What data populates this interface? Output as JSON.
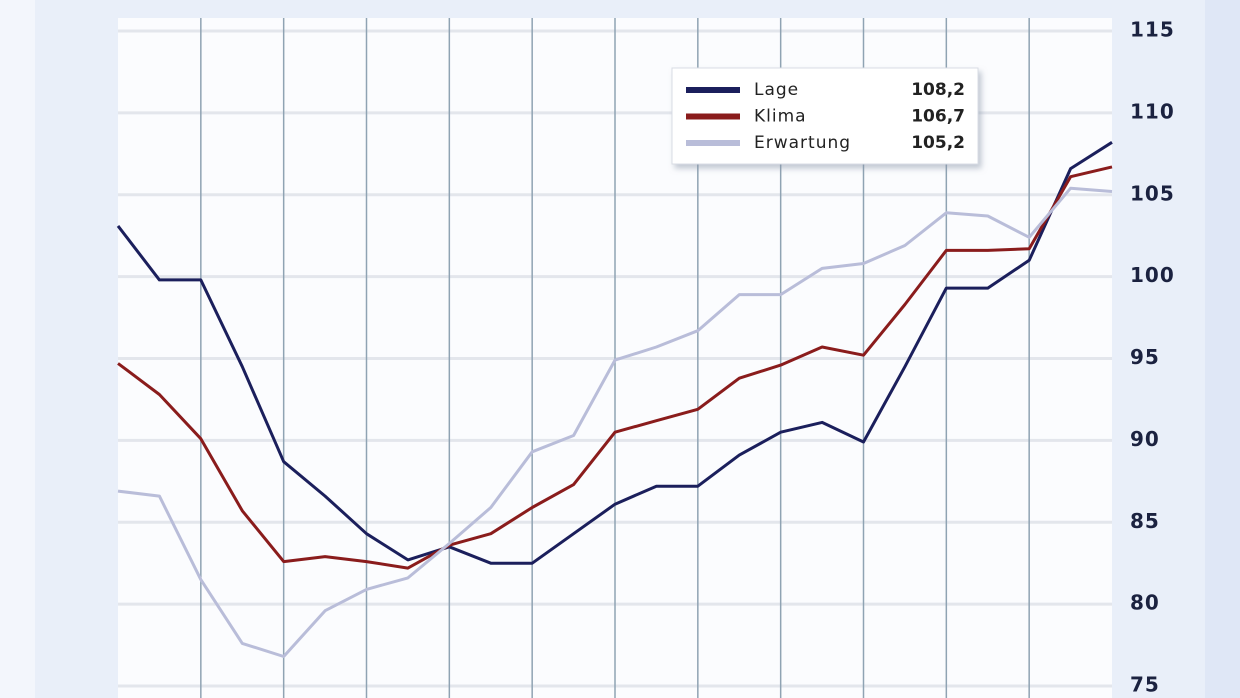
{
  "chart_data": {
    "type": "line",
    "ylim": [
      75,
      115
    ],
    "yticks": [
      75,
      80,
      85,
      90,
      95,
      100,
      105,
      110,
      115
    ],
    "grid": true,
    "series": [
      {
        "name": "Lage",
        "color": "#1b1f5c",
        "legend_value": "108,2",
        "values": [
          103.1,
          99.8,
          99.8,
          94.5,
          88.7,
          86.6,
          84.3,
          82.7,
          83.5,
          82.5,
          82.5,
          84.3,
          86.1,
          87.2,
          87.2,
          89.1,
          90.5,
          91.1,
          89.9,
          94.5,
          99.3,
          99.3,
          101.0,
          106.6,
          108.2
        ]
      },
      {
        "name": "Klima",
        "color": "#8a1c1c",
        "legend_value": "106,7",
        "values": [
          94.7,
          92.8,
          90.1,
          85.7,
          82.6,
          82.9,
          82.6,
          82.2,
          83.6,
          84.3,
          85.9,
          87.3,
          90.5,
          91.2,
          91.9,
          93.8,
          94.6,
          95.7,
          95.2,
          98.3,
          101.6,
          101.6,
          101.7,
          106.1,
          106.7
        ]
      },
      {
        "name": "Erwartung",
        "color": "#b9bdd9",
        "legend_value": "105,2",
        "values": [
          86.9,
          86.6,
          81.5,
          77.6,
          76.8,
          79.6,
          80.9,
          81.6,
          83.7,
          85.9,
          89.3,
          90.3,
          94.9,
          95.7,
          96.7,
          98.9,
          98.9,
          100.5,
          100.8,
          101.9,
          103.9,
          103.7,
          102.4,
          105.4,
          105.2
        ]
      }
    ]
  }
}
